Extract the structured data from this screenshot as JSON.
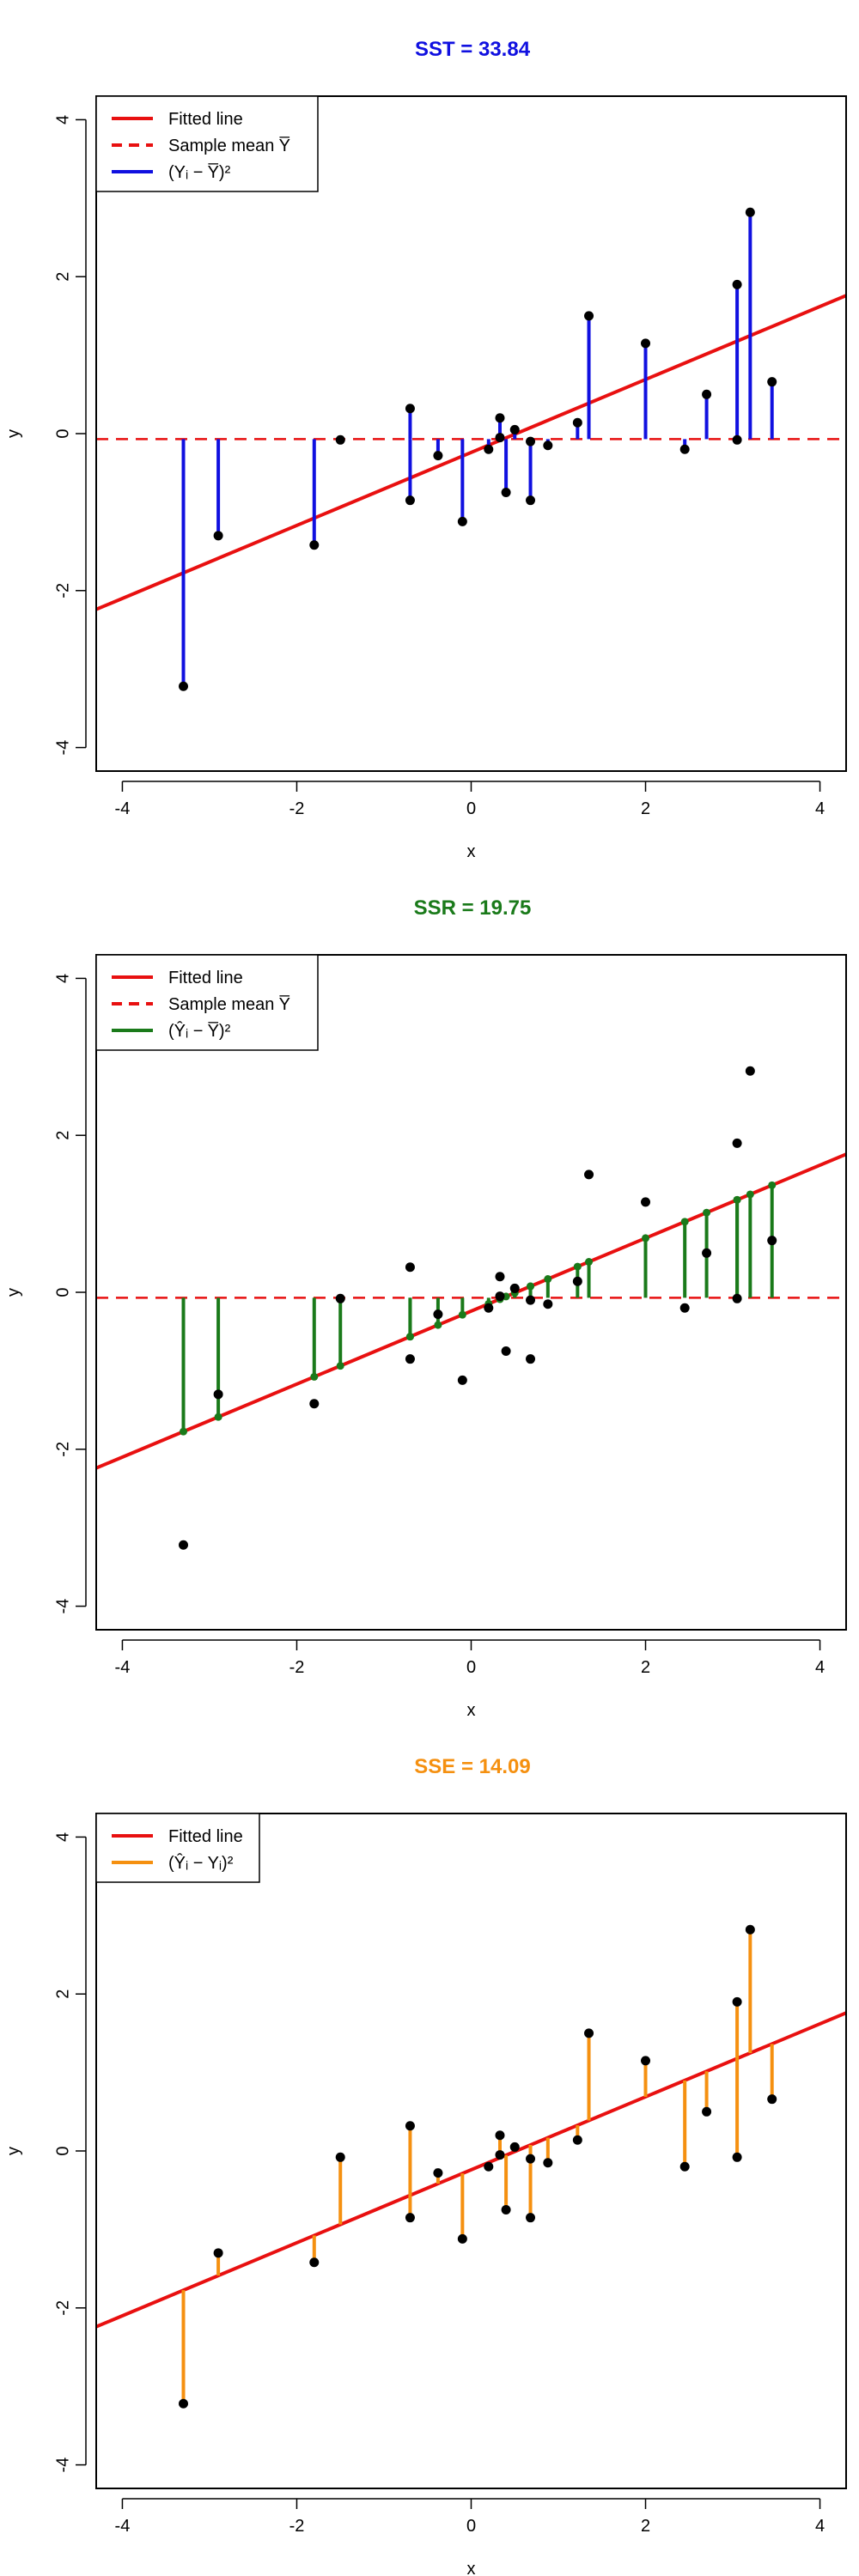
{
  "chart_data": [
    {
      "type": "scatter",
      "title": "SST = 33.84",
      "title_color": "#1010e0",
      "xlabel": "x",
      "ylabel": "y",
      "xlim": [
        -4.3,
        4.3
      ],
      "ylim": [
        -4.3,
        4.3
      ],
      "x_ticks": [
        -4,
        -2,
        0,
        2,
        4
      ],
      "y_ticks": [
        -4,
        -2,
        0,
        2,
        4
      ],
      "grid": false,
      "legend_placement": "top-left",
      "segment_mode": "mean_to_obs",
      "segment_color": "#1010e0",
      "legend": [
        {
          "label": "Fitted line",
          "style": "solid",
          "color": "#e81010"
        },
        {
          "label": "Sample mean Y̅",
          "style": "dashed",
          "color": "#e81010"
        },
        {
          "label": "(Yᵢ − Y̅)²",
          "style": "solid",
          "color": "#1010e0"
        }
      ]
    },
    {
      "type": "scatter",
      "title": "SSR = 19.75",
      "title_color": "#1a7a1a",
      "xlabel": "x",
      "ylabel": "y",
      "xlim": [
        -4.3,
        4.3
      ],
      "ylim": [
        -4.3,
        4.3
      ],
      "x_ticks": [
        -4,
        -2,
        0,
        2,
        4
      ],
      "y_ticks": [
        -4,
        -2,
        0,
        2,
        4
      ],
      "grid": false,
      "legend_placement": "top-left",
      "segment_mode": "mean_to_fit",
      "segment_color": "#1a7a1a",
      "legend": [
        {
          "label": "Fitted line",
          "style": "solid",
          "color": "#e81010"
        },
        {
          "label": "Sample mean Y̅",
          "style": "dashed",
          "color": "#e81010"
        },
        {
          "label": "(Ŷᵢ − Y̅)²",
          "style": "solid",
          "color": "#1a7a1a"
        }
      ]
    },
    {
      "type": "scatter",
      "title": "SSE = 14.09",
      "title_color": "#f59010",
      "xlabel": "x",
      "ylabel": "y",
      "xlim": [
        -4.3,
        4.3
      ],
      "ylim": [
        -4.3,
        4.3
      ],
      "x_ticks": [
        -4,
        -2,
        0,
        2,
        4
      ],
      "y_ticks": [
        -4,
        -2,
        0,
        2,
        4
      ],
      "grid": false,
      "legend_placement": "top-left",
      "segment_mode": "fit_to_obs",
      "segment_color": "#f59010",
      "legend": [
        {
          "label": "Fitted line",
          "style": "solid",
          "color": "#e81010"
        },
        {
          "label": "(Ŷᵢ − Yᵢ)²",
          "style": "solid",
          "color": "#f59010"
        }
      ]
    }
  ],
  "shared": {
    "points": [
      {
        "x": -3.3,
        "y": -3.22
      },
      {
        "x": -2.9,
        "y": -1.3
      },
      {
        "x": -1.8,
        "y": -1.42
      },
      {
        "x": -1.5,
        "y": -0.08
      },
      {
        "x": -0.7,
        "y": 0.32
      },
      {
        "x": -0.7,
        "y": -0.85
      },
      {
        "x": -0.38,
        "y": -0.28
      },
      {
        "x": -0.1,
        "y": -1.12
      },
      {
        "x": 0.2,
        "y": -0.2
      },
      {
        "x": 0.33,
        "y": 0.2
      },
      {
        "x": 0.33,
        "y": -0.05
      },
      {
        "x": 0.4,
        "y": -0.75
      },
      {
        "x": 0.5,
        "y": 0.05
      },
      {
        "x": 0.68,
        "y": -0.1
      },
      {
        "x": 0.68,
        "y": -0.85
      },
      {
        "x": 0.88,
        "y": -0.15
      },
      {
        "x": 1.22,
        "y": 0.14
      },
      {
        "x": 1.35,
        "y": 1.5
      },
      {
        "x": 2.0,
        "y": 1.15
      },
      {
        "x": 2.45,
        "y": -0.2
      },
      {
        "x": 2.7,
        "y": 0.5
      },
      {
        "x": 3.05,
        "y": 1.9
      },
      {
        "x": 3.05,
        "y": -0.08
      },
      {
        "x": 3.2,
        "y": 2.82
      },
      {
        "x": 3.45,
        "y": 0.66
      }
    ],
    "fit_intercept": -0.24,
    "fit_slope": 0.465,
    "mean_y": -0.07,
    "line_color": "#e81010",
    "point_color": "#000000"
  }
}
